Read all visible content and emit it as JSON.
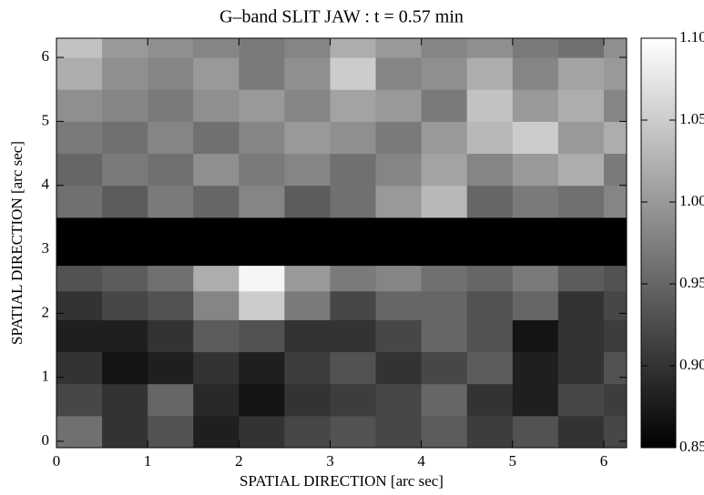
{
  "chart_data": {
    "type": "heatmap",
    "title": "G–band SLIT JAW : t = 0.57 min",
    "x_label": "SPATIAL DIRECTION [arc sec]",
    "y_label": "SPATIAL DIRECTION [arc sec]",
    "xbins": [
      0,
      0.5,
      1.0,
      1.5,
      2.0,
      2.5,
      3.0,
      3.5,
      4.0,
      4.5,
      5.0,
      5.5,
      6.0,
      6.25
    ],
    "ybins": [
      -0.1,
      0.4,
      0.9,
      1.4,
      1.9,
      2.35,
      2.75,
      3.5,
      4.0,
      4.5,
      5.0,
      5.5,
      6.0,
      6.3
    ],
    "values": [
      [
        0.96,
        0.9,
        0.93,
        0.88,
        0.9,
        0.92,
        0.93,
        0.92,
        0.94,
        0.91,
        0.93,
        0.9,
        0.92
      ],
      [
        0.92,
        0.9,
        0.95,
        0.89,
        0.87,
        0.9,
        0.91,
        0.92,
        0.95,
        0.9,
        0.88,
        0.92,
        0.91
      ],
      [
        0.9,
        0.87,
        0.88,
        0.9,
        0.88,
        0.91,
        0.93,
        0.9,
        0.92,
        0.94,
        0.88,
        0.9,
        0.93
      ],
      [
        0.88,
        0.88,
        0.9,
        0.94,
        0.93,
        0.9,
        0.9,
        0.92,
        0.95,
        0.93,
        0.87,
        0.9,
        0.91
      ],
      [
        0.9,
        0.92,
        0.93,
        0.98,
        1.05,
        0.97,
        0.92,
        0.95,
        0.95,
        0.93,
        0.95,
        0.9,
        0.92
      ],
      [
        0.93,
        0.94,
        0.96,
        1.02,
        1.09,
        1.0,
        0.97,
        0.98,
        0.96,
        0.95,
        0.97,
        0.94,
        0.93
      ],
      [
        null,
        null,
        null,
        null,
        null,
        null,
        null,
        null,
        null,
        null,
        null,
        null,
        null
      ],
      [
        0.96,
        0.94,
        0.97,
        0.95,
        0.98,
        0.94,
        0.96,
        1.0,
        1.03,
        0.95,
        0.97,
        0.96,
        0.98
      ],
      [
        0.95,
        0.97,
        0.96,
        0.99,
        0.97,
        0.98,
        0.96,
        0.98,
        1.01,
        0.98,
        1.0,
        1.02,
        0.97
      ],
      [
        0.97,
        0.96,
        0.98,
        0.96,
        0.98,
        1.0,
        0.99,
        0.97,
        1.0,
        1.03,
        1.05,
        1.0,
        1.02
      ],
      [
        0.99,
        0.98,
        0.97,
        0.99,
        1.0,
        0.98,
        1.01,
        1.0,
        0.97,
        1.04,
        1.0,
        1.02,
        0.98
      ],
      [
        1.02,
        0.99,
        0.98,
        1.0,
        0.97,
        0.99,
        1.05,
        0.98,
        0.99,
        1.02,
        0.98,
        1.01,
        1.0
      ],
      [
        1.04,
        1.0,
        0.99,
        0.98,
        0.97,
        0.98,
        1.02,
        1.0,
        0.98,
        0.99,
        0.97,
        0.96,
        0.99
      ]
    ],
    "null_color": "#000000",
    "xlim": [
      0,
      6.25
    ],
    "xticks": [
      0,
      1,
      2,
      3,
      4,
      5,
      6
    ],
    "ylim": [
      -0.1,
      6.3
    ],
    "yticks": [
      0,
      1,
      2,
      3,
      4,
      5,
      6
    ],
    "clim": [
      0.85,
      1.1
    ],
    "cticks": [
      0.85,
      {
        "value": 0.9,
        "label": "0.90"
      },
      0.95,
      {
        "value": 1.0,
        "label": "1.00"
      },
      1.05,
      {
        "value": 1.1,
        "label": "1.10"
      }
    ],
    "colormap": [
      "#000000",
      "#ffffff"
    ]
  }
}
